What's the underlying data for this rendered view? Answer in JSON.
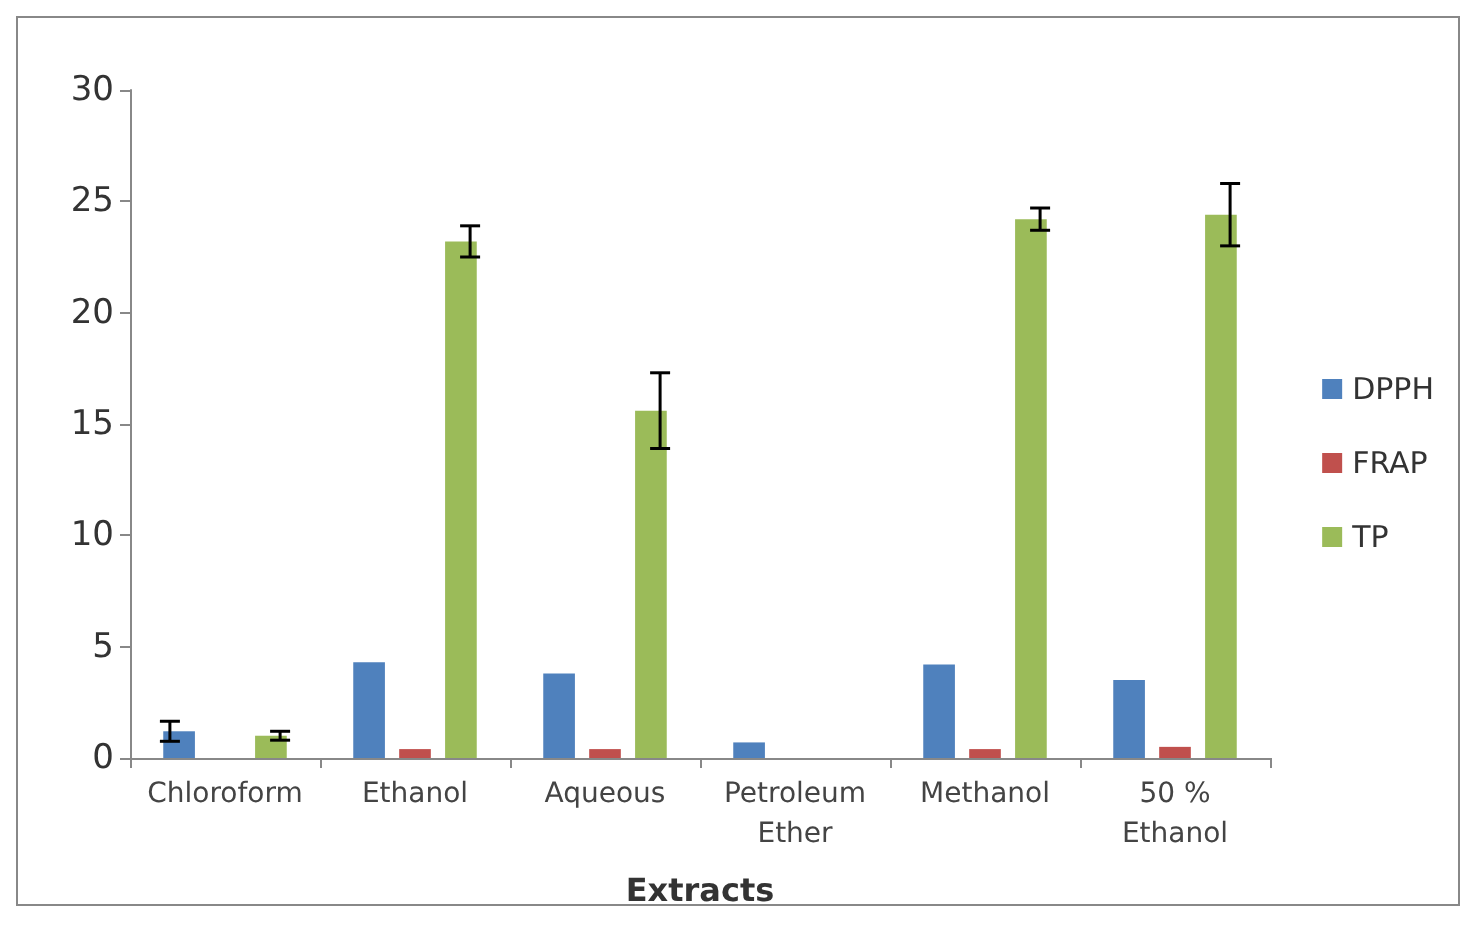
{
  "chart_data": {
    "type": "bar",
    "xlabel": "Extracts",
    "categories": [
      "Chloroform",
      "Ethanol",
      "Aqueous",
      "Petroleum\nEther",
      "Methanol",
      "50 %\nEthanol"
    ],
    "series": [
      {
        "name": "DPPH",
        "color": "#4f81bd",
        "values": [
          1.2,
          4.3,
          3.8,
          0.7,
          4.2,
          3.5
        ],
        "errors": [
          0.45,
          null,
          null,
          null,
          null,
          null
        ]
      },
      {
        "name": "FRAP",
        "color": "#c0504d",
        "values": [
          null,
          0.4,
          0.4,
          null,
          0.4,
          0.5
        ]
      },
      {
        "name": "TP",
        "color": "#9bbb59",
        "values": [
          1.0,
          23.2,
          15.6,
          null,
          24.2,
          24.4
        ],
        "errors": [
          0.2,
          0.7,
          1.7,
          null,
          0.5,
          1.4
        ]
      }
    ],
    "ylim": [
      0,
      30
    ],
    "yticks": [
      0,
      5,
      10,
      15,
      20,
      25,
      30
    ],
    "grid": false,
    "legend": "right"
  }
}
